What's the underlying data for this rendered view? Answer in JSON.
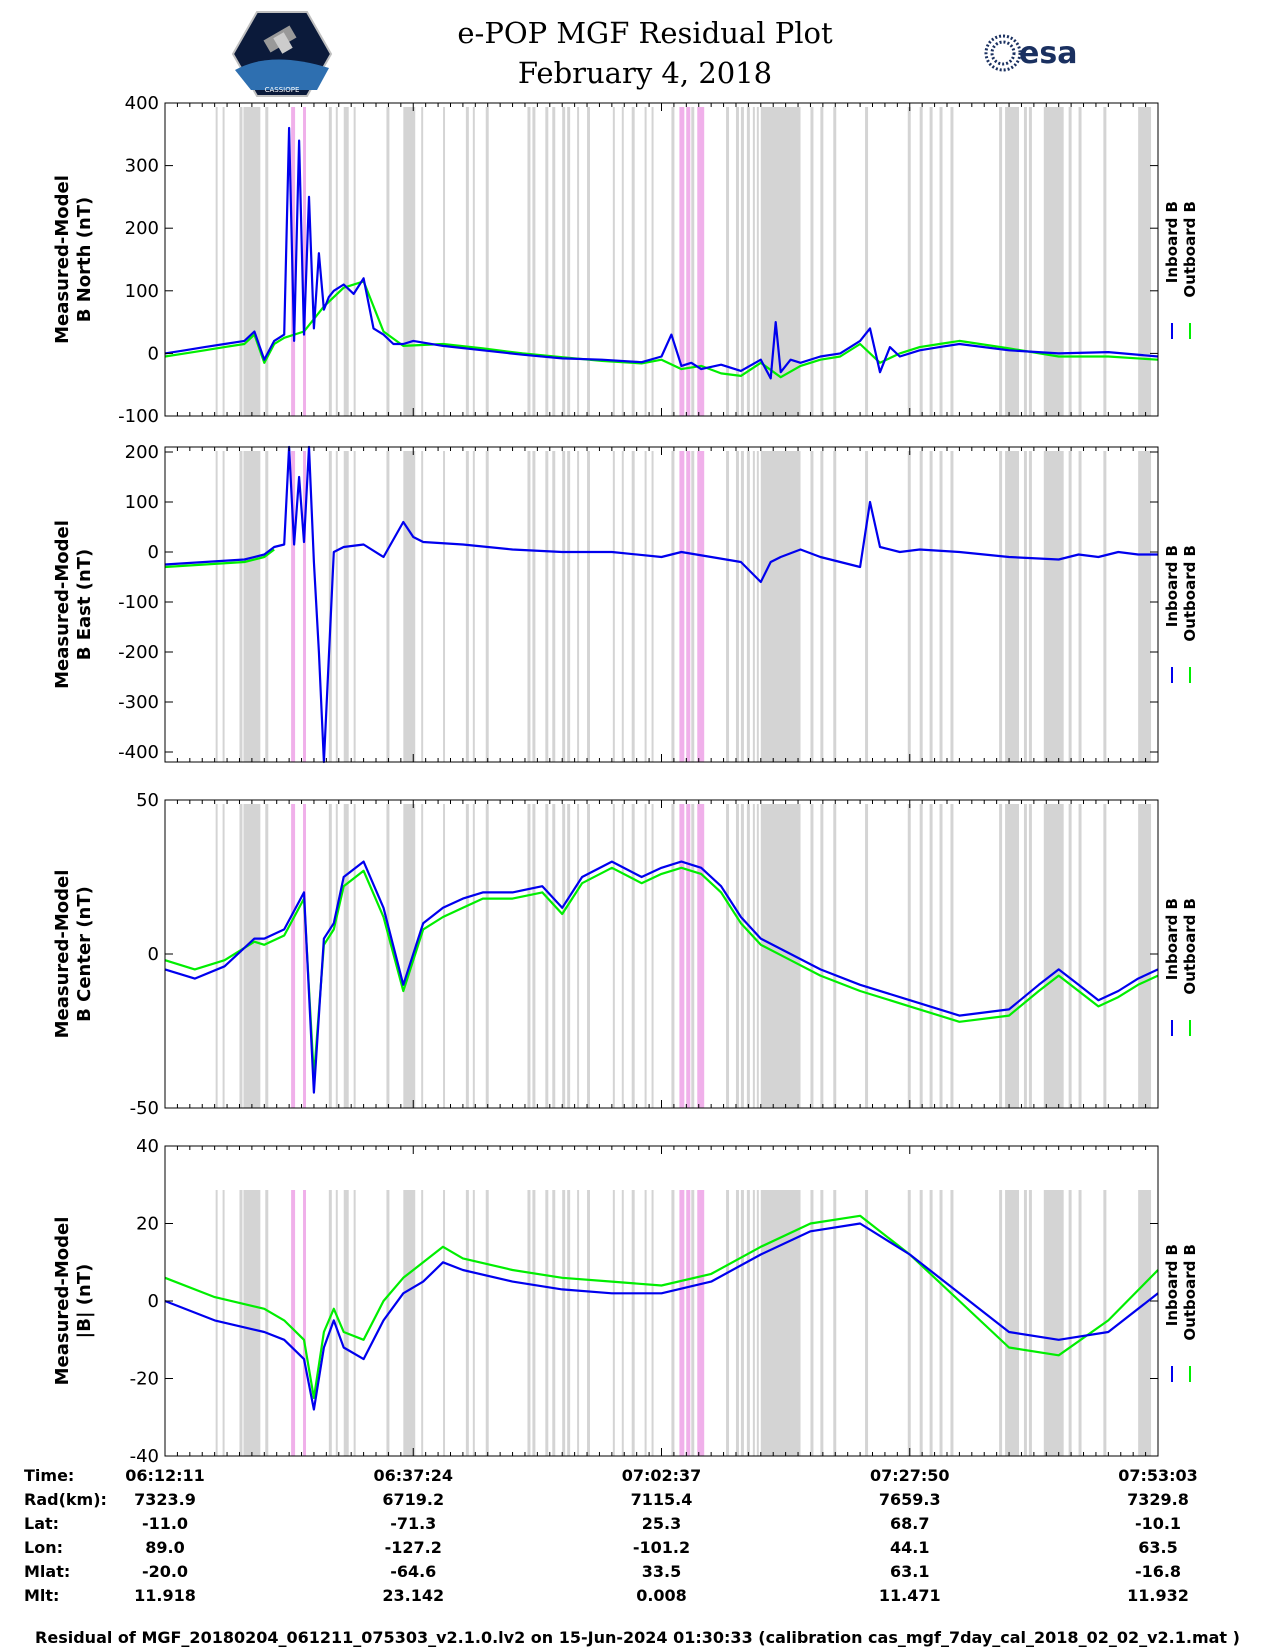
{
  "header": {
    "title_line1": "e-POP MGF Residual Plot",
    "title_line2": "February 4, 2018",
    "left_logo_text": "CASSIOPE",
    "right_logo_text": "esa"
  },
  "colors": {
    "inboard": "#0000ee",
    "outboard": "#00ee00",
    "gray_band": "#d4d4d4",
    "pink_band": "#f0b0ea"
  },
  "legend": {
    "inboard": "Inboard B",
    "outboard": "Outboard B"
  },
  "chart_data": [
    {
      "type": "line",
      "panel": "north",
      "ylabel_line1": "Measured-Model",
      "ylabel_line2": "B North (nT)",
      "ylim": [
        -100,
        400
      ],
      "yticks": [
        -100,
        0,
        100,
        200,
        300,
        400
      ],
      "xlim": [
        0,
        100
      ],
      "series": [
        {
          "name": "Inboard B",
          "x": [
            0,
            2,
            4,
            6,
            8,
            9,
            10,
            11,
            12,
            12.5,
            13,
            13.5,
            14,
            14.5,
            15,
            15.5,
            16,
            16.5,
            17,
            18,
            19,
            20,
            21,
            22,
            23,
            24,
            25,
            28,
            32,
            36,
            40,
            44,
            48,
            50,
            51,
            52,
            53,
            54,
            56,
            58,
            60,
            61,
            61.5,
            62,
            63,
            64,
            66,
            68,
            70,
            71,
            72,
            73,
            74,
            76,
            78,
            80,
            85,
            90,
            95,
            100
          ],
          "y": [
            0,
            5,
            10,
            15,
            20,
            35,
            -10,
            20,
            30,
            360,
            20,
            340,
            30,
            250,
            40,
            160,
            70,
            90,
            100,
            110,
            95,
            120,
            40,
            30,
            15,
            15,
            20,
            12,
            5,
            -2,
            -8,
            -10,
            -14,
            -5,
            30,
            -20,
            -15,
            -25,
            -18,
            -28,
            -10,
            -40,
            50,
            -30,
            -10,
            -15,
            -5,
            0,
            20,
            40,
            -30,
            10,
            -5,
            5,
            10,
            15,
            5,
            0,
            2,
            -5
          ]
        },
        {
          "name": "Outboard B",
          "x": [
            0,
            2,
            4,
            6,
            8,
            9,
            10,
            11,
            12,
            14,
            16,
            18,
            20,
            22,
            24,
            28,
            32,
            36,
            40,
            44,
            48,
            50,
            52,
            54,
            56,
            58,
            60,
            62,
            64,
            66,
            68,
            70,
            72,
            74,
            76,
            78,
            80,
            85,
            90,
            95,
            100
          ],
          "y": [
            -5,
            0,
            5,
            10,
            15,
            30,
            -15,
            15,
            25,
            35,
            75,
            105,
            115,
            35,
            12,
            15,
            8,
            0,
            -6,
            -12,
            -16,
            -10,
            -25,
            -20,
            -32,
            -36,
            -15,
            -38,
            -20,
            -10,
            -5,
            15,
            -15,
            0,
            10,
            15,
            20,
            8,
            -5,
            -5,
            -10
          ]
        }
      ]
    },
    {
      "type": "line",
      "panel": "east",
      "ylabel_line1": "Measured-Model",
      "ylabel_line2": "B East (nT)",
      "ylim": [
        -420,
        210
      ],
      "yticks": [
        -400,
        -300,
        -200,
        -100,
        0,
        100,
        200
      ],
      "xlim": [
        0,
        100
      ],
      "series": [
        {
          "name": "Inboard B",
          "x": [
            0,
            4,
            8,
            10,
            11,
            12,
            12.5,
            13,
            13.5,
            14,
            14.5,
            15,
            15.5,
            16,
            17,
            18,
            20,
            22,
            24,
            25,
            26,
            30,
            35,
            40,
            45,
            50,
            52,
            55,
            58,
            60,
            61,
            62,
            64,
            66,
            70,
            71,
            72,
            74,
            76,
            80,
            85,
            90,
            92,
            94,
            96,
            98,
            100
          ],
          "y": [
            -25,
            -20,
            -15,
            -5,
            10,
            15,
            210,
            15,
            150,
            20,
            210,
            -20,
            -200,
            -420,
            0,
            10,
            15,
            -10,
            60,
            30,
            20,
            15,
            5,
            0,
            0,
            -10,
            0,
            -10,
            -20,
            -60,
            -20,
            -10,
            5,
            -10,
            -30,
            100,
            10,
            0,
            5,
            0,
            -10,
            -15,
            -5,
            -10,
            0,
            -5,
            -5
          ]
        },
        {
          "name": "Outboard B",
          "x": [
            0,
            4,
            8,
            10,
            11
          ],
          "y": [
            -30,
            -25,
            -20,
            -10,
            5
          ]
        }
      ]
    },
    {
      "type": "line",
      "panel": "center",
      "ylabel_line1": "Measured-Model",
      "ylabel_line2": "B Center (nT)",
      "ylim": [
        -50,
        50
      ],
      "yticks": [
        -50,
        0,
        50
      ],
      "xlim": [
        0,
        100
      ],
      "series": [
        {
          "name": "Inboard B",
          "x": [
            0,
            3,
            6,
            9,
            10,
            12,
            14,
            15,
            16,
            17,
            18,
            20,
            22,
            24,
            26,
            28,
            30,
            32,
            35,
            38,
            40,
            42,
            45,
            48,
            50,
            52,
            54,
            56,
            58,
            60,
            63,
            66,
            70,
            75,
            80,
            85,
            88,
            90,
            92,
            94,
            96,
            98,
            100
          ],
          "y": [
            -5,
            -8,
            -4,
            5,
            5,
            8,
            20,
            -45,
            5,
            10,
            25,
            30,
            15,
            -10,
            10,
            15,
            18,
            20,
            20,
            22,
            15,
            25,
            30,
            25,
            28,
            30,
            28,
            22,
            12,
            5,
            0,
            -5,
            -10,
            -15,
            -20,
            -18,
            -10,
            -5,
            -10,
            -15,
            -12,
            -8,
            -5
          ]
        },
        {
          "name": "Outboard B",
          "x": [
            0,
            3,
            6,
            9,
            10,
            12,
            14,
            15,
            16,
            17,
            18,
            20,
            22,
            24,
            26,
            28,
            30,
            32,
            35,
            38,
            40,
            42,
            45,
            48,
            50,
            52,
            54,
            56,
            58,
            60,
            63,
            66,
            70,
            75,
            80,
            85,
            88,
            90,
            92,
            94,
            96,
            98,
            100
          ],
          "y": [
            -2,
            -5,
            -2,
            4,
            3,
            6,
            18,
            -40,
            3,
            8,
            22,
            27,
            12,
            -12,
            8,
            12,
            15,
            18,
            18,
            20,
            13,
            23,
            28,
            23,
            26,
            28,
            26,
            20,
            10,
            3,
            -2,
            -7,
            -12,
            -17,
            -22,
            -20,
            -12,
            -7,
            -12,
            -17,
            -14,
            -10,
            -7
          ]
        }
      ]
    },
    {
      "type": "line",
      "panel": "magnitude",
      "ylabel_line1": "Measured-Model",
      "ylabel_line2": "|B| (nT)",
      "ylim": [
        -40,
        40
      ],
      "yticks": [
        -40,
        -20,
        0,
        20,
        40
      ],
      "xlim": [
        0,
        100
      ],
      "series": [
        {
          "name": "Inboard B",
          "x": [
            0,
            5,
            10,
            12,
            14,
            15,
            16,
            17,
            18,
            20,
            22,
            24,
            26,
            28,
            30,
            35,
            40,
            45,
            50,
            55,
            60,
            65,
            70,
            75,
            80,
            85,
            90,
            95,
            100
          ],
          "y": [
            0,
            -5,
            -8,
            -10,
            -15,
            -28,
            -12,
            -5,
            -12,
            -15,
            -5,
            2,
            5,
            10,
            8,
            5,
            3,
            2,
            2,
            5,
            12,
            18,
            20,
            12,
            2,
            -8,
            -10,
            -8,
            2
          ]
        },
        {
          "name": "Outboard B",
          "x": [
            0,
            5,
            10,
            12,
            14,
            15,
            16,
            17,
            18,
            20,
            22,
            24,
            26,
            28,
            30,
            35,
            40,
            45,
            50,
            55,
            60,
            65,
            70,
            75,
            80,
            85,
            90,
            95,
            100
          ],
          "y": [
            6,
            1,
            -2,
            -5,
            -10,
            -25,
            -8,
            -2,
            -8,
            -10,
            0,
            6,
            10,
            14,
            11,
            8,
            6,
            5,
            4,
            7,
            14,
            20,
            22,
            12,
            0,
            -12,
            -14,
            -5,
            8
          ]
        }
      ]
    }
  ],
  "bands": {
    "gray": [
      [
        5.1,
        5.3
      ],
      [
        5.8,
        6.0
      ],
      [
        7.5,
        7.8
      ],
      [
        7.9,
        9.6
      ],
      [
        10.1,
        10.4
      ],
      [
        16.5,
        16.8
      ],
      [
        17.2,
        17.4
      ],
      [
        18.0,
        18.5
      ],
      [
        19.0,
        19.2
      ],
      [
        22.3,
        22.6
      ],
      [
        24.0,
        25.2
      ],
      [
        25.8,
        26.0
      ],
      [
        28.0,
        28.2
      ],
      [
        30.3,
        30.6
      ],
      [
        31.0,
        31.2
      ],
      [
        32.3,
        32.6
      ],
      [
        36.5,
        36.8
      ],
      [
        37.0,
        37.3
      ],
      [
        38.3,
        38.6
      ],
      [
        39.0,
        39.3
      ],
      [
        40.0,
        40.3
      ],
      [
        40.5,
        40.8
      ],
      [
        41.5,
        41.7
      ],
      [
        42.5,
        42.8
      ],
      [
        45.1,
        45.3
      ],
      [
        46.0,
        46.2
      ],
      [
        47.0,
        47.3
      ],
      [
        48.3,
        48.5
      ],
      [
        49.0,
        49.2
      ],
      [
        51.0,
        51.3
      ],
      [
        52.5,
        52.8
      ],
      [
        53.0,
        53.3
      ],
      [
        56.5,
        56.8
      ],
      [
        57.5,
        57.8
      ],
      [
        58.0,
        58.3
      ],
      [
        58.6,
        58.9
      ],
      [
        59.2,
        59.4
      ],
      [
        59.6,
        59.8
      ],
      [
        60.0,
        64.0
      ],
      [
        65.0,
        65.3
      ],
      [
        66.0,
        66.3
      ],
      [
        67.3,
        67.6
      ],
      [
        70.5,
        70.8
      ],
      [
        74.8,
        75.1
      ],
      [
        76.0,
        76.3
      ],
      [
        77.0,
        77.3
      ],
      [
        78.0,
        78.3
      ],
      [
        79.1,
        79.4
      ],
      [
        84.0,
        84.3
      ],
      [
        84.6,
        86.0
      ],
      [
        86.5,
        86.8
      ],
      [
        87.0,
        87.3
      ],
      [
        88.5,
        90.5
      ],
      [
        91.0,
        91.3
      ],
      [
        92.0,
        92.3
      ],
      [
        94.5,
        94.8
      ],
      [
        98.0,
        99.3
      ]
    ],
    "pink": [
      [
        12.7,
        13.1
      ],
      [
        13.9,
        14.2
      ],
      [
        51.8,
        52.3
      ],
      [
        52.5,
        52.9
      ],
      [
        53.6,
        54.3
      ]
    ]
  },
  "time_axis": {
    "row_labels": [
      "Time:",
      "Rad(km):",
      "Lat:",
      "Lon:",
      "Mlat:",
      "Mlt:"
    ],
    "columns": [
      {
        "x": 0,
        "values": [
          "06:12:11",
          "7323.9",
          "-11.0",
          "89.0",
          "-20.0",
          "11.918"
        ]
      },
      {
        "x": 25,
        "values": [
          "06:37:24",
          "6719.2",
          "-71.3",
          "-127.2",
          "-64.6",
          "23.142"
        ]
      },
      {
        "x": 50,
        "values": [
          "07:02:37",
          "7115.4",
          "25.3",
          "-101.2",
          "33.5",
          "0.008"
        ]
      },
      {
        "x": 75,
        "values": [
          "07:27:50",
          "7659.3",
          "68.7",
          "44.1",
          "63.1",
          "11.471"
        ]
      },
      {
        "x": 100,
        "values": [
          "07:53:03",
          "7329.8",
          "-10.1",
          "63.5",
          "-16.8",
          "11.932"
        ]
      }
    ]
  },
  "footer": "Residual of MGF_20180204_061211_075303_v2.1.0.lv2 on 15-Jun-2024 01:30:33 (calibration cas_mgf_7day_cal_2018_02_02_v2.1.mat )"
}
